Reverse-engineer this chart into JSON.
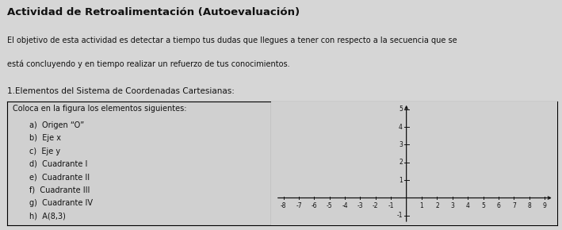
{
  "title": "Actividad de Retroalimentación (Autoevaluación)",
  "subtitle_line1": "El objetivo de esta actividad es detectar a tiempo tus dudas que llegues a tener con respecto a la secuencia que se",
  "subtitle_line2": "está concluyendo y en tiempo realizar un refuerzo de tus conocimientos.",
  "section": "1.Elementos del Sistema de Coordenadas Cartesianas:",
  "box_text_title": "Coloca en la figura los elementos siguientes:",
  "items": [
    "a)  Origen “O”",
    "b)  Eje x",
    "c)  Eje y",
    "d)  Cuadrante I",
    "e)  Cuadrante II",
    "f)  Cuadrante III",
    "g)  Cuadrante IV",
    "h)  A(8,3)"
  ],
  "x_min": -8,
  "x_max": 9,
  "y_min": -1,
  "y_max": 5,
  "page_bg": "#d6d6d6",
  "box_bg": "#d0d0d0",
  "text_color": "#111111",
  "axis_color": "#111111",
  "title_fontsize": 9.5,
  "body_fontsize": 7.0,
  "item_fontsize": 7.0,
  "section_fontsize": 7.5
}
